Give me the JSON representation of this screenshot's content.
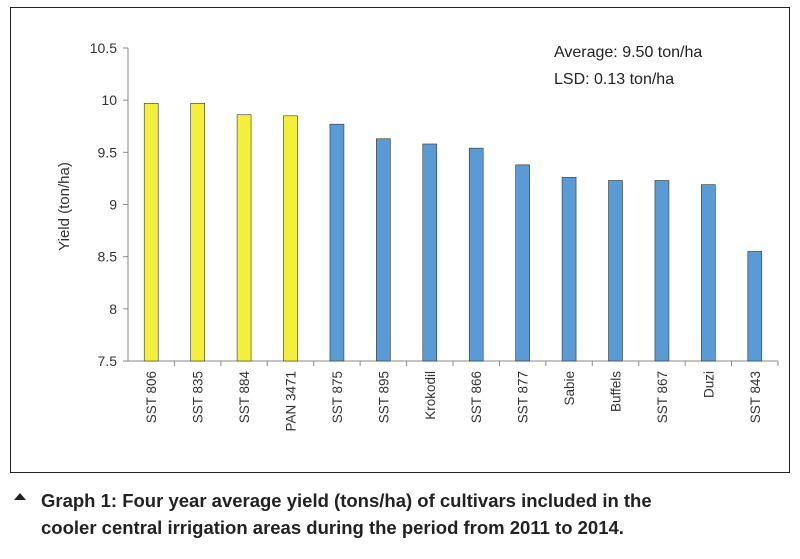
{
  "chart_data": {
    "type": "bar",
    "categories": [
      "SST 806",
      "SST 835",
      "SST 884",
      "PAN 3471",
      "SST 875",
      "SST 895",
      "Krokodil",
      "SST 866",
      "SST 877",
      "Sabie",
      "Buffels",
      "SST 867",
      "Duzi",
      "SST 843"
    ],
    "values": [
      9.97,
      9.97,
      9.86,
      9.85,
      9.77,
      9.63,
      9.58,
      9.54,
      9.38,
      9.26,
      9.23,
      9.23,
      9.19,
      8.55
    ],
    "bar_colors": [
      "#f4ef3b",
      "#f4ef3b",
      "#f4ef3b",
      "#f4ef3b",
      "#5b9bd5",
      "#5b9bd5",
      "#5b9bd5",
      "#5b9bd5",
      "#5b9bd5",
      "#5b9bd5",
      "#5b9bd5",
      "#5b9bd5",
      "#5b9bd5",
      "#5b9bd5"
    ],
    "ylabel": "Yield (ton/ha)",
    "ylim": [
      7.5,
      10.5
    ],
    "yticks": [
      "7.5",
      "8",
      "8.5",
      "9",
      "9.5",
      "10",
      "10.5"
    ],
    "grid": false,
    "annotations": [
      "Average: 9.50 ton/ha",
      "LSD: 0.13 ton/ha"
    ]
  },
  "caption": {
    "line1": "Graph 1: Four year average yield (tons/ha) of cultivars included in the",
    "line2": "cooler central irrigation areas during the period from 2011 to 2014."
  }
}
